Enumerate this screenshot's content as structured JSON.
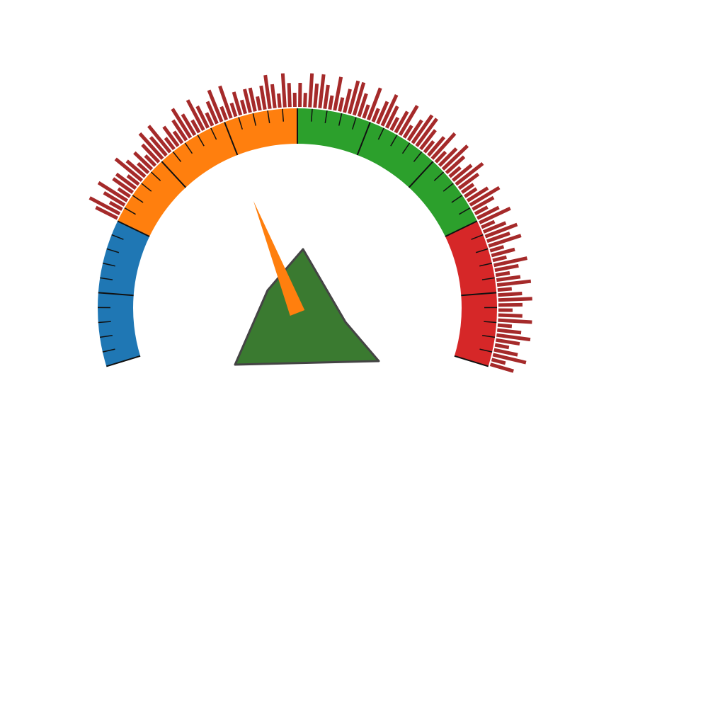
{
  "chart_data": {
    "type": "gauge",
    "title": "",
    "scale": {
      "min": 0,
      "max": 100,
      "major_step": 10,
      "minor_per_major": 5,
      "tick_labels": []
    },
    "bands": [
      {
        "from": 0,
        "to": 20,
        "color": "#1f77b4"
      },
      {
        "from": 20,
        "to": 50,
        "color": "#ff7f0e"
      },
      {
        "from": 50,
        "to": 80,
        "color": "#2ca02c"
      },
      {
        "from": 80,
        "to": 100,
        "color": "#d62728"
      }
    ],
    "needle": {
      "value": 40,
      "color": "#ff7f0e"
    },
    "polygon_marker": {
      "color": "#3a7a30",
      "stroke": "#444444"
    },
    "outer_bars": {
      "color": "#a52a2a",
      "values": [
        2,
        3,
        1,
        2,
        3,
        1,
        2,
        2,
        1,
        3,
        2,
        1,
        2,
        1,
        2,
        3,
        2,
        3,
        1,
        2,
        1,
        2,
        3,
        2,
        1,
        3,
        2,
        1,
        2,
        3,
        1,
        3,
        1,
        2,
        1,
        2,
        2,
        1,
        2,
        3,
        2,
        1,
        3,
        2,
        1,
        2,
        1,
        3,
        2,
        3,
        2,
        1,
        3,
        1,
        2,
        3,
        3,
        2,
        1,
        3,
        1,
        2,
        3,
        2,
        1,
        2,
        3,
        1,
        2,
        3,
        3,
        2,
        1,
        2,
        3,
        1,
        2,
        3,
        2,
        1,
        2,
        3,
        2,
        1,
        1,
        2,
        3,
        2,
        1,
        2,
        3,
        1,
        2,
        3,
        2,
        3,
        1,
        2,
        1,
        3,
        2,
        1,
        2,
        3,
        1,
        2,
        3,
        2,
        1,
        2,
        3,
        1,
        2,
        3,
        2,
        1,
        2,
        3,
        1,
        2
      ]
    }
  }
}
